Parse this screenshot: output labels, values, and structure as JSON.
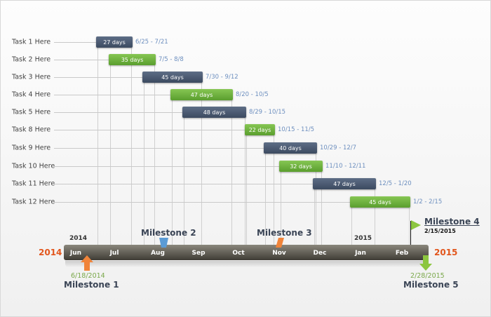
{
  "chart_data": {
    "type": "gantt",
    "tasks": [
      {
        "name": "Task 1 Here",
        "duration": "27 days",
        "range": "6/25 - 7/21",
        "color": "dark"
      },
      {
        "name": "Task 2 Here",
        "duration": "35 days",
        "range": "7/5 - 8/8",
        "color": "green"
      },
      {
        "name": "Task 3 Here",
        "duration": "45 days",
        "range": "7/30 - 9/12",
        "color": "dark"
      },
      {
        "name": "Task 4 Here",
        "duration": "47 days",
        "range": "8/20 - 10/5",
        "color": "green"
      },
      {
        "name": "Task 5 Here",
        "duration": "48 days",
        "range": "8/29 - 10/15",
        "color": "dark"
      },
      {
        "name": "Task 8 Here",
        "duration": "22 days",
        "range": "10/15 - 11/5",
        "color": "green"
      },
      {
        "name": "Task 9 Here",
        "duration": "40 days",
        "range": "10/29 - 12/7",
        "color": "dark"
      },
      {
        "name": "Task 10 Here",
        "duration": "32 days",
        "range": "11/10 - 12/11",
        "color": "green"
      },
      {
        "name": "Task 11 Here",
        "duration": "47 days",
        "range": "12/5 - 1/20",
        "color": "dark"
      },
      {
        "name": "Task 12 Here",
        "duration": "45 days",
        "range": "1/2 - 2/15",
        "color": "green"
      }
    ],
    "timeline": {
      "start_year": "2014",
      "end_year": "2015",
      "year_marks": [
        "2014",
        "2015"
      ],
      "months": [
        "Jun",
        "Jul",
        "Aug",
        "Sep",
        "Oct",
        "Nov",
        "Dec",
        "Jan",
        "Feb"
      ]
    },
    "milestones": [
      {
        "label": "Milestone 1",
        "date": "6/18/2014",
        "color": "#f0843a"
      },
      {
        "label": "Milestone 2",
        "color": "#5b9bd5"
      },
      {
        "label": "Milestone 3",
        "color": "#f0843a"
      },
      {
        "label": "Milestone 4",
        "date": "2/15/2015",
        "color": "#8cc63f"
      },
      {
        "label": "Milestone 5",
        "date": "2/28/2015",
        "color": "#8cc63f"
      }
    ],
    "colors": {
      "dark": "#46546b",
      "green": "#6cb33f",
      "accent": "#e2561d"
    }
  }
}
